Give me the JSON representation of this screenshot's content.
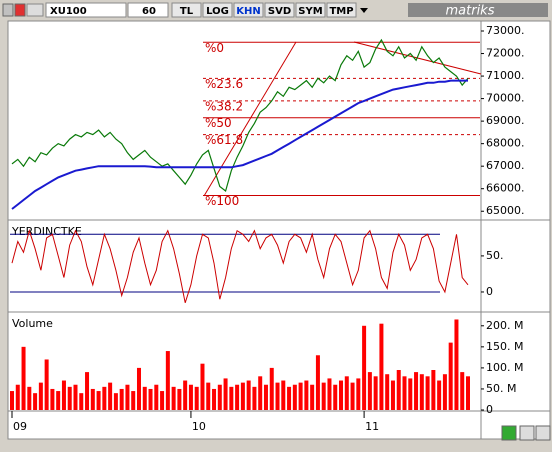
{
  "toolbar": {
    "symbol": "XU100",
    "period": "60",
    "buttons": [
      "TL",
      "LOG",
      "KHN",
      "SVD",
      "SYM",
      "TMP"
    ],
    "active": "KHN",
    "brand": "matriks"
  },
  "chart_data": [
    {
      "type": "line",
      "series": [
        {
          "color": "#0a7a0a",
          "values": [
            67100,
            67300,
            67000,
            67400,
            67200,
            67600,
            67500,
            67800,
            68000,
            67900,
            68200,
            68400,
            68300,
            68500,
            68400,
            68600,
            68300,
            68500,
            68200,
            68000,
            67600,
            67300,
            67500,
            67700,
            67400,
            67200,
            67000,
            67100,
            66800,
            66500,
            66200,
            66600,
            67100,
            67500,
            67700,
            66900,
            66100,
            65900,
            66800,
            67400,
            67900,
            68500,
            68900,
            69400,
            69600,
            69900,
            70300,
            70100,
            70500,
            70400,
            70600,
            70800,
            70500,
            70900,
            70700,
            71000,
            70800,
            71500,
            71900,
            71700,
            72100,
            71400,
            71600,
            72200,
            72600,
            72100,
            71900,
            72300,
            71800,
            72000,
            71700,
            72300,
            71900,
            71600,
            71800,
            71400,
            71200,
            71000,
            70600,
            70900
          ]
        },
        {
          "color": "#1a1ad0",
          "values": [
            65100,
            65300,
            65500,
            65700,
            65900,
            66050,
            66200,
            66350,
            66500,
            66600,
            66700,
            66800,
            66850,
            66900,
            66950,
            67000,
            67000,
            67000,
            67000,
            67000,
            67000,
            67000,
            67000,
            67000,
            66980,
            66950,
            66950,
            66950,
            66950,
            66950,
            66950,
            66950,
            66950,
            66950,
            66950,
            66950,
            66950,
            66950,
            66950,
            67000,
            67050,
            67150,
            67250,
            67350,
            67450,
            67550,
            67700,
            67850,
            68000,
            68150,
            68300,
            68450,
            68600,
            68750,
            68900,
            69050,
            69200,
            69350,
            69500,
            69650,
            69800,
            69900,
            70000,
            70100,
            70200,
            70300,
            70400,
            70450,
            70500,
            70550,
            70600,
            70650,
            70700,
            70700,
            70750,
            70750,
            70800,
            70800,
            70800,
            70800
          ]
        }
      ],
      "fib_levels": [
        {
          "label": "%0",
          "value": 72500,
          "dashed": false
        },
        {
          "label": "%23.6",
          "value": 70900,
          "dashed": true
        },
        {
          "label": "%38.2",
          "value": 69900,
          "dashed": true
        },
        {
          "label": "%50",
          "value": 69150,
          "dashed": false
        },
        {
          "label": "%61.8",
          "value": 68400,
          "dashed": true
        },
        {
          "label": "%100",
          "value": 65700,
          "dashed": false
        }
      ],
      "fib_color": "#cc0000",
      "ylim": [
        64700,
        73400
      ],
      "yticks": [
        {
          "value": 65000,
          "label": "65000."
        },
        {
          "value": 66000,
          "label": "66000."
        },
        {
          "value": 67000,
          "label": "67000."
        },
        {
          "value": 68000,
          "label": "68000."
        },
        {
          "value": 69000,
          "label": "69000."
        },
        {
          "value": 70000,
          "label": "70000."
        },
        {
          "value": 71000,
          "label": "71000."
        },
        {
          "value": 72000,
          "label": "72000."
        },
        {
          "value": 73000,
          "label": "73000."
        }
      ]
    },
    {
      "type": "line",
      "title": "YERDINCTKE",
      "color": "#cc0000",
      "values": [
        40,
        70,
        55,
        85,
        60,
        30,
        75,
        80,
        50,
        20,
        65,
        85,
        70,
        35,
        10,
        45,
        80,
        60,
        30,
        -5,
        20,
        55,
        75,
        40,
        10,
        30,
        70,
        85,
        60,
        25,
        -15,
        10,
        50,
        80,
        75,
        40,
        -10,
        20,
        60,
        85,
        80,
        70,
        85,
        60,
        75,
        80,
        65,
        40,
        70,
        80,
        75,
        55,
        80,
        45,
        20,
        60,
        80,
        70,
        40,
        10,
        30,
        75,
        85,
        60,
        20,
        5,
        55,
        80,
        65,
        30,
        45,
        75,
        80,
        60,
        15,
        0,
        40,
        80,
        20,
        10
      ],
      "hlines": [
        80,
        0
      ],
      "ylim": [
        -25,
        97
      ],
      "yticks": [
        0,
        {
          "value": 50,
          "label": "50."
        }
      ]
    },
    {
      "type": "bar",
      "title": "Volume",
      "color": "#ff0000",
      "categories": [
        "09",
        null,
        null,
        null,
        null,
        null,
        null,
        null,
        null,
        null,
        null,
        null,
        null,
        null,
        null,
        null,
        null,
        null,
        null,
        null,
        null,
        null,
        null,
        null,
        null,
        null,
        null,
        null,
        null,
        null,
        null,
        "10",
        null,
        null,
        null,
        null,
        null,
        null,
        null,
        null,
        null,
        null,
        null,
        null,
        null,
        null,
        null,
        null,
        null,
        null,
        null,
        null,
        null,
        null,
        null,
        null,
        null,
        null,
        null,
        null,
        null,
        "11",
        null,
        null,
        null,
        null,
        null,
        null,
        null,
        null,
        null,
        null,
        null,
        null,
        null,
        null,
        null,
        null,
        null,
        null
      ],
      "values": [
        45,
        60,
        150,
        55,
        40,
        65,
        120,
        50,
        45,
        70,
        55,
        60,
        40,
        90,
        50,
        45,
        55,
        65,
        40,
        50,
        60,
        45,
        100,
        55,
        50,
        60,
        45,
        140,
        55,
        50,
        70,
        60,
        55,
        110,
        65,
        50,
        60,
        75,
        55,
        60,
        65,
        70,
        55,
        80,
        60,
        100,
        65,
        70,
        55,
        60,
        65,
        70,
        60,
        130,
        65,
        75,
        60,
        70,
        80,
        65,
        75,
        200,
        90,
        80,
        205,
        85,
        70,
        95,
        80,
        75,
        90,
        85,
        80,
        95,
        70,
        85,
        160,
        215,
        90,
        80
      ],
      "ylim": [
        0,
        228
      ],
      "yticks": [
        0,
        {
          "value": 50,
          "label": "50. M"
        },
        {
          "value": 100,
          "label": "100. M"
        },
        {
          "value": 150,
          "label": "150. M"
        },
        {
          "value": 200,
          "label": "200. M"
        }
      ]
    }
  ]
}
